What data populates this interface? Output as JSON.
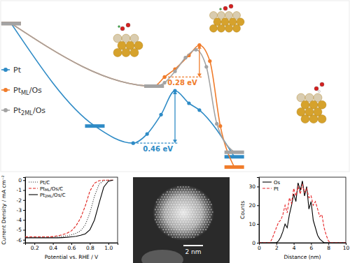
{
  "chart_data": [
    {
      "type": "line",
      "series": [
        {
          "name": "Pt",
          "color": "#2e8bc6",
          "marker": "circle",
          "x": [
            3,
            27,
            38,
            42,
            46,
            50,
            54,
            57,
            67
          ],
          "values": [
            0,
            -0.9,
            -1.05,
            -0.97,
            -0.8,
            -0.59,
            -0.7,
            -0.76,
            -1.17
          ]
        },
        {
          "name": "PtML/Os",
          "color": "#f07c2b",
          "marker": "circle",
          "x": [
            3,
            44,
            47,
            50,
            54,
            57,
            60,
            63,
            67
          ],
          "values": [
            0,
            -0.55,
            -0.47,
            -0.4,
            -0.28,
            -0.19,
            -0.33,
            -0.9,
            -1.26
          ]
        },
        {
          "name": "Pt2ML/Os",
          "color": "#a3a3a3",
          "marker": "circle",
          "x": [
            3,
            44,
            47,
            50,
            53,
            56,
            59,
            62,
            67
          ],
          "values": [
            0,
            -0.55,
            -0.52,
            -0.42,
            -0.3,
            -0.23,
            -0.38,
            -0.88,
            -1.13
          ]
        }
      ],
      "xlim": [
        0,
        100
      ],
      "ylim": [
        -1.3,
        0.2
      ],
      "xticks": [],
      "yticks": [],
      "tick_labels": false,
      "legend": "left",
      "annotations": [
        {
          "text": "0.28 eV",
          "value": 0.28,
          "series": "PtML/Os"
        },
        {
          "text": "0.46 eV",
          "value": 0.46,
          "series": "Pt"
        }
      ]
    },
    {
      "type": "line",
      "x_label": "Potential vs. RHE / V",
      "y_label": "Current Density / mA cm⁻²",
      "x": [
        0.1,
        0.15,
        0.2,
        0.25,
        0.3,
        0.35,
        0.4,
        0.45,
        0.5,
        0.55,
        0.6,
        0.65,
        0.7,
        0.75,
        0.8,
        0.85,
        0.9,
        0.95,
        1.0,
        1.05
      ],
      "series": [
        {
          "name": "Pt/C",
          "color": "#444444",
          "line_style": "dotted",
          "values": [
            -5.7,
            -5.7,
            -5.7,
            -5.7,
            -5.7,
            -5.7,
            -5.7,
            -5.68,
            -5.65,
            -5.6,
            -5.5,
            -5.35,
            -5.1,
            -4.5,
            -3.3,
            -1.6,
            -0.4,
            -0.05,
            0,
            0
          ]
        },
        {
          "name": "PtML/Os/C",
          "color": "#e0201b",
          "line_style": "dashed",
          "values": [
            -5.7,
            -5.7,
            -5.7,
            -5.7,
            -5.7,
            -5.7,
            -5.68,
            -5.6,
            -5.5,
            -5.35,
            -5.1,
            -4.6,
            -3.8,
            -2.6,
            -1.1,
            -0.3,
            -0.05,
            0,
            0,
            0
          ]
        },
        {
          "name": "Pt2ML/Os/C",
          "color": "#000000",
          "line_style": "solid",
          "values": [
            -5.8,
            -5.8,
            -5.8,
            -5.8,
            -5.8,
            -5.8,
            -5.8,
            -5.8,
            -5.78,
            -5.75,
            -5.7,
            -5.65,
            -5.55,
            -5.4,
            -5.0,
            -4.0,
            -2.3,
            -0.7,
            -0.1,
            0
          ]
        }
      ],
      "xlim": [
        0.1,
        1.1
      ],
      "ylim": [
        -6.3,
        0.3
      ],
      "xticks": [
        0.2,
        0.4,
        0.6,
        0.8,
        {
          "value": 1,
          "label": "1.0"
        }
      ],
      "yticks": [
        -6,
        -5,
        -4,
        -3,
        -2,
        -1,
        0
      ],
      "legend": "upper left"
    },
    {
      "type": "image",
      "scale_bar": {
        "value": 2,
        "label": "2 nm"
      }
    },
    {
      "type": "line",
      "x_label": "Distance (nm)",
      "y_label": "Counts",
      "x": [
        0,
        0.25,
        0.5,
        0.75,
        1,
        1.25,
        1.5,
        1.75,
        2,
        2.25,
        2.5,
        2.75,
        3,
        3.25,
        3.5,
        3.75,
        4,
        4.25,
        4.5,
        4.75,
        5,
        5.25,
        5.5,
        5.75,
        6,
        6.25,
        6.5,
        6.75,
        7,
        7.25,
        7.5,
        7.75,
        8,
        8.25,
        8.5,
        8.75,
        9,
        9.25,
        9.5,
        9.75,
        10
      ],
      "series": [
        {
          "name": "Os",
          "color": "#000000",
          "line_style": "solid",
          "values": [
            0,
            0,
            0,
            0,
            0,
            0,
            0,
            0,
            0,
            1,
            3,
            6,
            10,
            8,
            15,
            20,
            26,
            22,
            32,
            28,
            33,
            25,
            30,
            18,
            22,
            12,
            8,
            4,
            2,
            1,
            0,
            0,
            0,
            0,
            0,
            0,
            0,
            0,
            0,
            0,
            0
          ]
        },
        {
          "name": "Pt",
          "color": "#e8292c",
          "line_style": "dashed",
          "values": [
            0,
            0,
            0,
            0,
            0,
            0,
            2,
            5,
            8,
            11,
            12,
            15,
            20,
            16,
            24,
            21,
            29,
            25,
            30,
            26,
            31,
            27,
            29,
            24,
            25,
            20,
            22,
            18,
            14,
            15,
            8,
            4,
            1,
            0,
            0,
            0,
            0,
            0,
            0,
            0,
            0
          ]
        }
      ],
      "xlim": [
        0,
        10
      ],
      "ylim": [
        0,
        35
      ],
      "xticks": [
        0,
        2,
        4,
        6,
        8,
        10
      ],
      "yticks": [
        0,
        10,
        20,
        30
      ],
      "legend": "upper left"
    }
  ]
}
